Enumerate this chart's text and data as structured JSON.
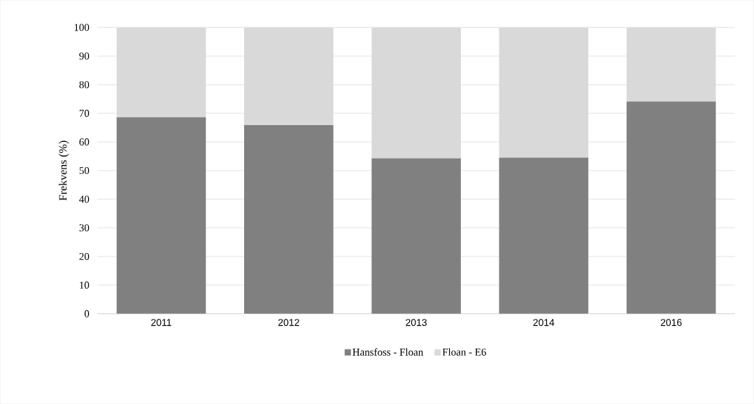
{
  "chart_data": {
    "type": "bar",
    "stacked": true,
    "ylabel": "Frekvens (%)",
    "categories": [
      "2011",
      "2012",
      "2013",
      "2014",
      "2016"
    ],
    "series": [
      {
        "name": "Hansfoss - Floan",
        "color": "#808080",
        "values": [
          68.6,
          65.9,
          54.3,
          54.5,
          74.1
        ]
      },
      {
        "name": "Floan - E6",
        "color": "#d9d9d9",
        "values": [
          31.4,
          34.1,
          45.7,
          45.5,
          25.9
        ]
      }
    ],
    "ylim": [
      0,
      100
    ],
    "yticks": [
      0,
      10,
      20,
      30,
      40,
      50,
      60,
      70,
      80,
      90,
      100
    ],
    "grid": "y",
    "legend": "bottom"
  }
}
